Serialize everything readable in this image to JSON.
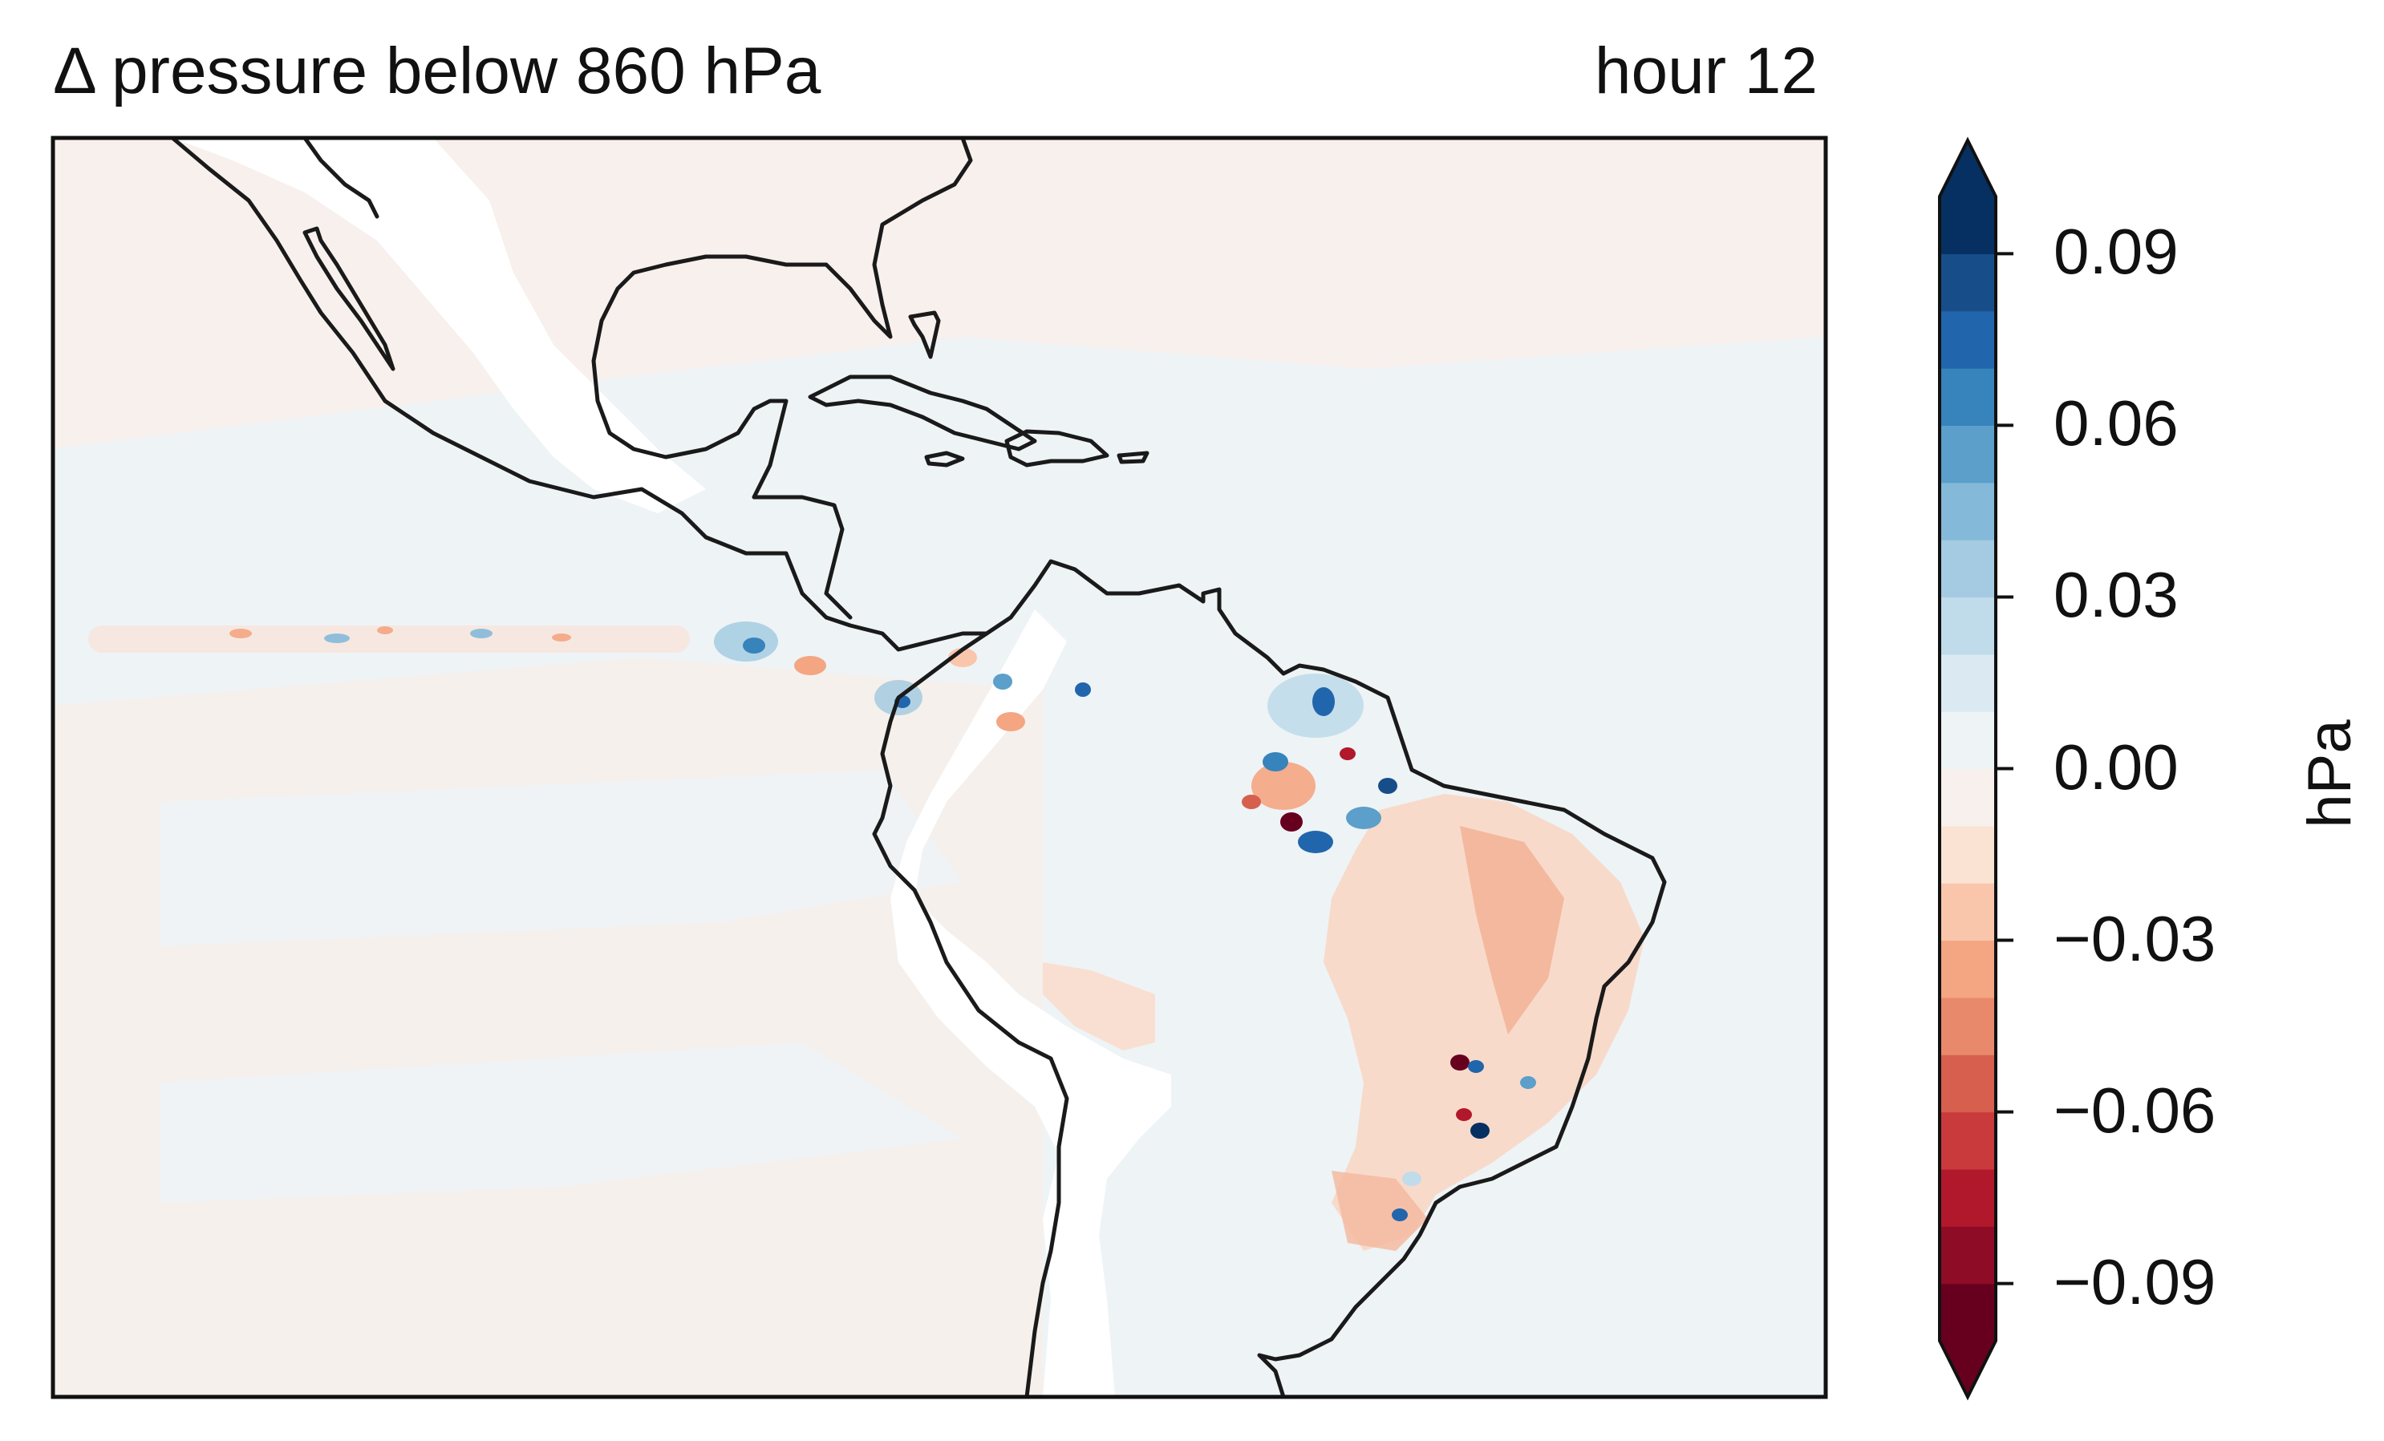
{
  "title": "Δ pressure below 860 hPa",
  "time_label": "hour 12",
  "colorbar": {
    "unit": "hPa",
    "ticks": [
      "0.09",
      "0.06",
      "0.03",
      "0.00",
      "−0.03",
      "−0.06",
      "−0.09"
    ],
    "tick_values": [
      0.09,
      0.06,
      0.03,
      0.0,
      -0.03,
      -0.06,
      -0.09
    ],
    "range": [
      -0.1,
      0.1
    ],
    "extend": "both",
    "colormap": "RdBu",
    "colors": [
      "#67001f",
      "#8e0c25",
      "#b2182b",
      "#c93a3c",
      "#d6604d",
      "#e8896c",
      "#f4a582",
      "#f9c6ac",
      "#fbe3d4",
      "#f7f0ec",
      "#eef3f6",
      "#dbeaf2",
      "#c0dbea",
      "#a4cbe2",
      "#85b9d9",
      "#5b9fca",
      "#3783bb",
      "#2166ac",
      "#174e8a",
      "#053061"
    ]
  },
  "map": {
    "region": "Central and South America, Caribbean, eastern Pacific and western Atlantic",
    "land_outline_color": "#1a1a1a",
    "masked_color": "#ffffff",
    "background_field_color": "#eef3f6"
  }
}
